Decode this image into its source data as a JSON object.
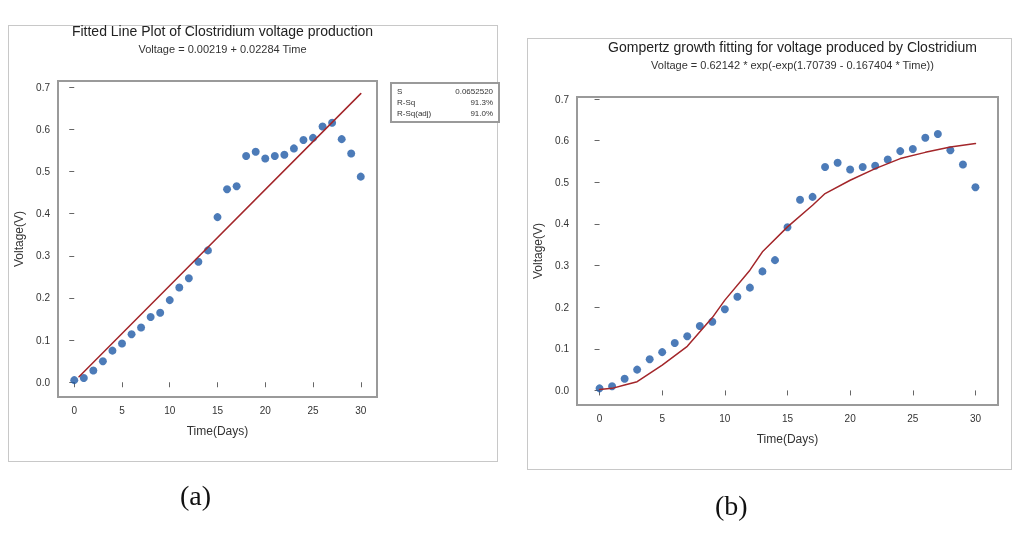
{
  "chart_data": [
    {
      "type": "scatter",
      "title": "Fitted Line Plot of Clostridium voltage production",
      "subtitle": "Voltage = 0.00219 + 0.02284 Time",
      "xlabel": "Time(Days)",
      "ylabel": "Voltage(V)",
      "x": [
        0,
        1,
        2,
        3,
        4,
        5,
        6,
        7,
        8,
        9,
        10,
        11,
        12,
        13,
        14,
        15,
        16,
        17,
        18,
        19,
        20,
        21,
        22,
        23,
        24,
        25,
        26,
        27,
        28,
        29,
        30
      ],
      "series": [
        {
          "color": "#1f5aa6",
          "marker": "circle",
          "values": [
            0.005,
            0.01,
            0.028,
            0.05,
            0.075,
            0.092,
            0.114,
            0.13,
            0.155,
            0.165,
            0.195,
            0.225,
            0.247,
            0.286,
            0.313,
            0.392,
            0.458,
            0.465,
            0.537,
            0.547,
            0.531,
            0.537,
            0.54,
            0.555,
            0.575,
            0.58,
            0.607,
            0.616,
            0.577,
            0.543,
            0.488
          ]
        },
        {
          "type": "line",
          "color": "#a3262a",
          "marker": "none",
          "x": [
            0.5,
            30
          ],
          "values": [
            0.013,
            0.685
          ]
        }
      ],
      "xlim": [
        -1.7,
        31.7
      ],
      "xticks": [
        0,
        5,
        10,
        15,
        20,
        25,
        30
      ],
      "ylim": [
        -0.035,
        0.715
      ],
      "yticks": [
        {
          "value": 0,
          "label": "0.0"
        },
        0.1,
        0.2,
        0.3,
        0.4,
        0.5,
        0.6,
        0.7
      ],
      "annotations": [
        "S",
        "0.0652520",
        "R-Sq",
        "91.3%",
        "R-Sq(adj)",
        "91.0%",
        "(a)"
      ]
    },
    {
      "type": "scatter",
      "title": "Gompertz growth fitting for voltage produced by Clostridium",
      "subtitle": "Voltage = 0.62142 * exp(-exp(1.70739 - 0.167404 * Time))",
      "xlabel": "Time(Days)",
      "ylabel": "Voltage(V)",
      "x": [
        0,
        1,
        2,
        3,
        4,
        5,
        6,
        7,
        8,
        9,
        10,
        11,
        12,
        13,
        14,
        15,
        16,
        17,
        18,
        19,
        20,
        21,
        22,
        23,
        24,
        25,
        26,
        27,
        28,
        29,
        30
      ],
      "series": [
        {
          "color": "#1f5aa6",
          "marker": "circle",
          "values": [
            0.005,
            0.01,
            0.028,
            0.05,
            0.075,
            0.092,
            0.114,
            0.13,
            0.155,
            0.165,
            0.195,
            0.225,
            0.247,
            0.286,
            0.313,
            0.392,
            0.458,
            0.465,
            0.537,
            0.547,
            0.531,
            0.537,
            0.54,
            0.555,
            0.575,
            0.58,
            0.607,
            0.616,
            0.577,
            0.543,
            0.488
          ]
        },
        {
          "type": "line",
          "color": "#a3262a",
          "marker": "none",
          "x": [
            0,
            1,
            2,
            3,
            5,
            7,
            9,
            10,
            12,
            13,
            15,
            17,
            18,
            20,
            22,
            24,
            26,
            28,
            30
          ],
          "values": [
            0.002,
            0.005,
            0.013,
            0.021,
            0.061,
            0.106,
            0.175,
            0.217,
            0.289,
            0.333,
            0.393,
            0.445,
            0.473,
            0.505,
            0.533,
            0.557,
            0.572,
            0.585,
            0.593
          ]
        }
      ],
      "xlim": [
        -1.8,
        31.8
      ],
      "xticks": [
        0,
        5,
        10,
        15,
        20,
        25,
        30
      ],
      "ylim": [
        -0.035,
        0.705
      ],
      "yticks": [
        {
          "value": 0,
          "label": "0.0"
        },
        0.1,
        0.2,
        0.3,
        0.4,
        0.5,
        0.6,
        0.7
      ],
      "annotations": [
        "(b)"
      ]
    }
  ]
}
